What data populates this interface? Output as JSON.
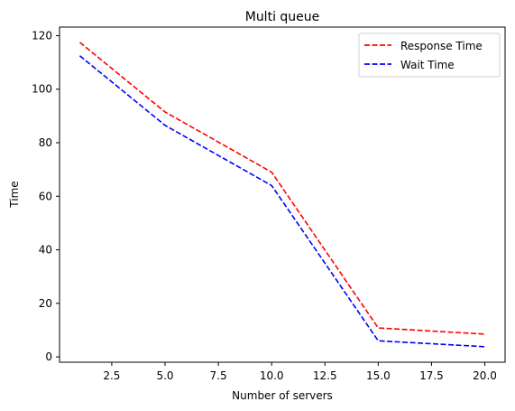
{
  "chart_data": {
    "type": "line",
    "title": "Multi queue",
    "xlabel": "Number of servers",
    "ylabel": "Time",
    "x": [
      1,
      5,
      10,
      15,
      20
    ],
    "series": [
      {
        "name": "Response Time",
        "values": [
          117.5,
          91.5,
          69,
          10.8,
          8.5
        ],
        "color": "#ff0000",
        "linestyle": "dashed"
      },
      {
        "name": "Wait Time",
        "values": [
          112.5,
          86.5,
          64,
          6,
          3.8
        ]
      }
    ],
    "xlim": [
      0.05,
      20.95
    ],
    "ylim": [
      -2.0,
      123.2
    ],
    "xticks": [
      "2.5",
      "5.0",
      "7.5",
      "10.0",
      "12.5",
      "15.0",
      "17.5",
      "20.0"
    ],
    "xtick_values": [
      2.5,
      5,
      7.5,
      10,
      12.5,
      15,
      17.5,
      20
    ],
    "yticks": [
      "0",
      "20",
      "40",
      "60",
      "80",
      "100",
      "120"
    ],
    "ytick_values": [
      0,
      20,
      40,
      60,
      80,
      100,
      120
    ],
    "grid": false,
    "legend_position": "upper right"
  }
}
